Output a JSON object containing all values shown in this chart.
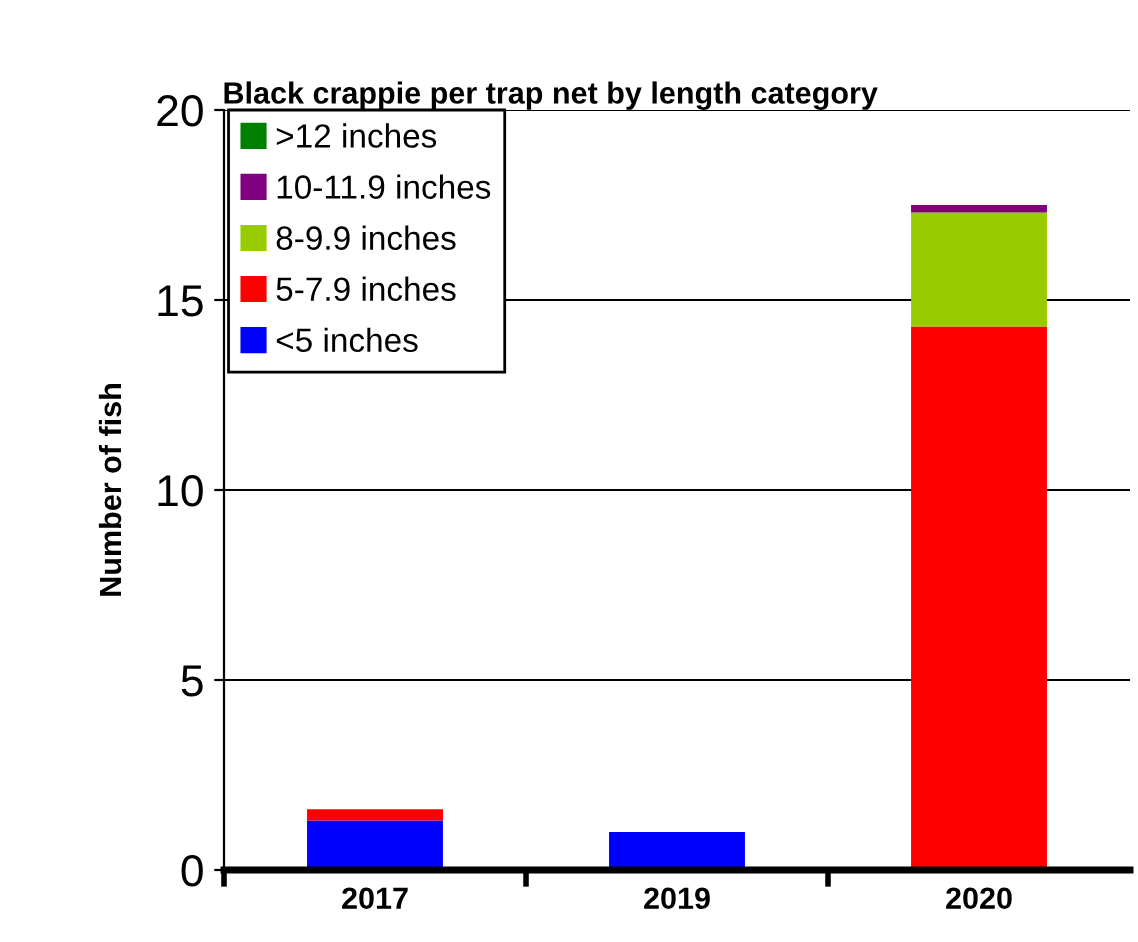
{
  "chart_data": {
    "type": "bar",
    "title": "Black crappie per trap net by length category",
    "ylabel": "Number of fish",
    "categories": [
      "2017",
      "2019",
      "2020"
    ],
    "stacked": true,
    "series": [
      {
        "name": "<5 inches",
        "color": "#0000ff",
        "values": [
          1.3,
          1.0,
          0
        ]
      },
      {
        "name": "5-7.9 inches",
        "color": "#ff0000",
        "values": [
          0.3,
          0,
          14.3
        ]
      },
      {
        "name": "8-9.9 inches",
        "color": "#99cc00",
        "values": [
          0,
          0,
          3.0
        ]
      },
      {
        "name": "10-11.9 inches",
        "color": "#800080",
        "values": [
          0,
          0,
          0.2
        ]
      },
      {
        "name": ">12 inches",
        "color": "#008000",
        "values": [
          0,
          0,
          0
        ]
      }
    ],
    "ylim": [
      0,
      20
    ],
    "yticks": [
      0,
      5,
      10,
      15,
      20
    ],
    "grid": "y",
    "legend": "top left"
  }
}
